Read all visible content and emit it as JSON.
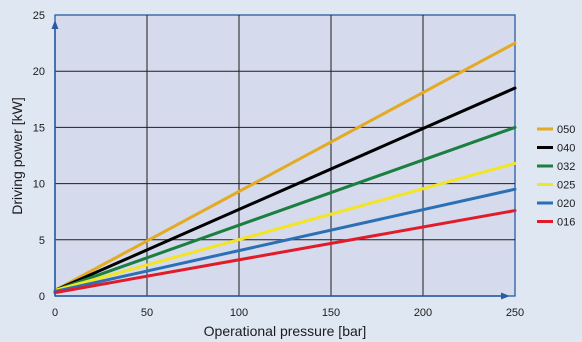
{
  "chart_data": {
    "type": "line",
    "xlabel": "Operational pressure [bar]",
    "ylabel": "Driving power  [kW]",
    "xlim": [
      0,
      250
    ],
    "ylim": [
      0,
      25
    ],
    "x_ticks": [
      0,
      50,
      100,
      150,
      200,
      250
    ],
    "y_ticks": [
      0,
      5,
      10,
      15,
      20,
      25
    ],
    "grid": true,
    "legend_position": "right",
    "x": [
      0,
      250
    ],
    "series": [
      {
        "name": "050",
        "color": "#e3aa22",
        "values": [
          0.5,
          22.5
        ]
      },
      {
        "name": "040",
        "color": "#000000",
        "values": [
          0.5,
          18.5
        ]
      },
      {
        "name": "032",
        "color": "#1a7f3f",
        "values": [
          0.5,
          15.0
        ]
      },
      {
        "name": "025",
        "color": "#f3e524",
        "values": [
          0.5,
          11.8
        ]
      },
      {
        "name": "020",
        "color": "#2b6fb5",
        "values": [
          0.4,
          9.5
        ]
      },
      {
        "name": "016",
        "color": "#e11c2a",
        "values": [
          0.3,
          7.6
        ]
      }
    ]
  }
}
